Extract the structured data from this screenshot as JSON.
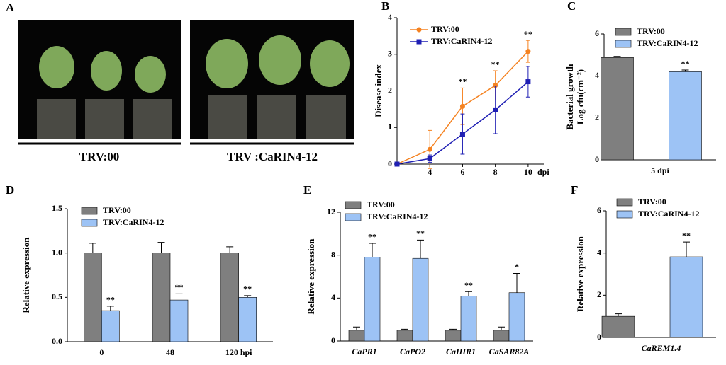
{
  "photo_panel": {
    "panel_label": "A",
    "labels": [
      "TRV:00",
      "TRV :CaRIN4-12"
    ]
  },
  "chart_data": [
    {
      "type": "line",
      "panel_label": "B",
      "ylabel": [
        "Disease index"
      ],
      "xlabel": "dpi",
      "x": [
        2,
        4,
        6,
        8,
        10
      ],
      "xlim": [
        2,
        11
      ],
      "xticks": [
        4,
        6,
        8,
        10
      ],
      "ylim": [
        0,
        4
      ],
      "yticks": [
        0,
        1,
        2,
        3,
        4
      ],
      "series": [
        {
          "name": "TRV:00",
          "color": "#f58220",
          "marker": "circle",
          "values": [
            0,
            0.4,
            1.58,
            2.15,
            3.08
          ],
          "errors": [
            0,
            0.52,
            0.5,
            0.4,
            0.3
          ],
          "labels": [
            null,
            null,
            "**",
            "**",
            "**"
          ]
        },
        {
          "name": "TRV:CaRIN4-12",
          "color": "#1f1fb4",
          "marker": "square",
          "values": [
            0,
            0.15,
            0.82,
            1.48,
            2.25
          ],
          "errors": [
            0,
            0.1,
            0.55,
            0.65,
            0.42
          ],
          "labels": [
            null,
            null,
            null,
            null,
            null
          ]
        }
      ]
    },
    {
      "type": "bar",
      "panel_label": "C",
      "ylabel": [
        "Bacterial growth",
        "Log cfu(cm⁻²)"
      ],
      "categories": [
        "5 dpi"
      ],
      "ylim": [
        0,
        6
      ],
      "yticks": [
        0,
        2,
        4,
        6
      ],
      "series": [
        {
          "name": "TRV:00",
          "color": "#7f7f7f",
          "values": [
            4.88
          ],
          "errors": [
            0.05
          ],
          "labels": [
            null
          ]
        },
        {
          "name": "TRV:CaRIN4-12",
          "color": "#9dc3f5",
          "values": [
            4.2
          ],
          "errors": [
            0.08
          ],
          "labels": [
            "**"
          ]
        }
      ]
    },
    {
      "type": "bar",
      "panel_label": "D",
      "ylabel": [
        "Relative expression"
      ],
      "categories": [
        "0",
        "48",
        "120 hpi"
      ],
      "ylim": [
        0,
        1.5
      ],
      "yticks": [
        {
          "value": 0,
          "label": "0.0"
        },
        {
          "value": 0.5,
          "label": "0.5"
        },
        {
          "value": 1,
          "label": "1.0"
        },
        {
          "value": 1.5,
          "label": "1.5"
        }
      ],
      "series": [
        {
          "name": "TRV:00",
          "color": "#7f7f7f",
          "values": [
            1,
            1,
            1
          ],
          "errors": [
            0.11,
            0.12,
            0.07
          ],
          "labels": [
            null,
            null,
            null
          ]
        },
        {
          "name": "TRV:CaRIN4-12",
          "color": "#9dc3f5",
          "values": [
            0.35,
            0.47,
            0.5
          ],
          "errors": [
            0.05,
            0.07,
            0.02
          ],
          "labels": [
            "**",
            "**",
            "**"
          ]
        }
      ]
    },
    {
      "type": "bar",
      "panel_label": "E",
      "ylabel": [
        "Relative expression"
      ],
      "category_style": "italic",
      "categories": [
        "CaPR1",
        "CaPO2",
        "CaHIR1",
        "CaSAR82A"
      ],
      "ylim": [
        0,
        12
      ],
      "yticks": [
        0,
        4,
        8,
        12
      ],
      "series": [
        {
          "name": "TRV:00",
          "color": "#7f7f7f",
          "values": [
            1,
            1,
            1,
            1
          ],
          "errors": [
            0.3,
            0.1,
            0.1,
            0.3
          ],
          "labels": [
            null,
            null,
            null,
            null
          ]
        },
        {
          "name": "TRV:CaRIN4-12",
          "color": "#9dc3f5",
          "values": [
            7.8,
            7.7,
            4.2,
            4.5
          ],
          "errors": [
            1.3,
            1.7,
            0.4,
            1.8
          ],
          "labels": [
            "**",
            "**",
            "**",
            "*"
          ]
        }
      ]
    },
    {
      "type": "bar",
      "panel_label": "F",
      "ylabel": [
        "Relative expression"
      ],
      "category_style": "italic",
      "categories": [
        "CaREM1.4"
      ],
      "ylim": [
        0,
        6
      ],
      "yticks": [
        0,
        2,
        4,
        6
      ],
      "series": [
        {
          "name": "TRV:00",
          "color": "#7f7f7f",
          "values": [
            1.0
          ],
          "errors": [
            0.12
          ],
          "labels": [
            null
          ]
        },
        {
          "name": "TRV:CaRIN4-12",
          "color": "#9dc3f5",
          "values": [
            3.82
          ],
          "errors": [
            0.7
          ],
          "labels": [
            "**"
          ]
        }
      ]
    }
  ]
}
